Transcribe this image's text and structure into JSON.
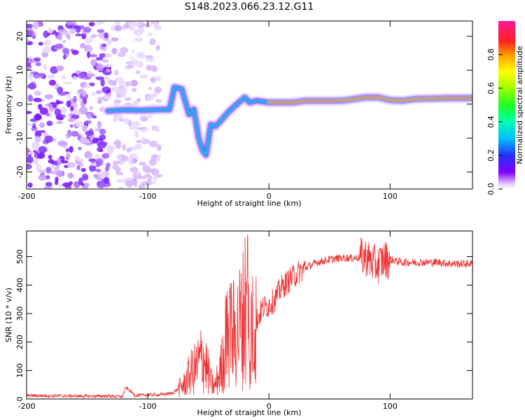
{
  "title": "S148.2023.066.23.12.G11",
  "chart_data": [
    {
      "type": "heatmap",
      "xlabel": "Height of straight line (km)",
      "ylabel": "Frequency (Hz)",
      "xlim": [
        -200,
        168
      ],
      "ylim": [
        -25,
        24.5
      ],
      "xticks": [
        -200,
        -100,
        0,
        100
      ],
      "yticks": [
        -20,
        -10,
        0,
        10,
        20
      ],
      "colorbar": {
        "label": "Normalized spectral amplitude",
        "ticks": [
          "0.0",
          "0.2",
          "0.4",
          "0.6",
          "0.8"
        ],
        "tick_values": [
          0,
          0.2,
          0.4,
          0.6,
          0.8
        ],
        "range": [
          0,
          1
        ],
        "colormap": "rainbow-to-magenta"
      },
      "ridge": [
        [
          -133,
          -2.0
        ],
        [
          -120,
          -1.7
        ],
        [
          -105,
          -1.8
        ],
        [
          -92,
          -1.6
        ],
        [
          -82,
          -1.6
        ],
        [
          -78,
          5.0
        ],
        [
          -72,
          4.5
        ],
        [
          -66,
          -3.0
        ],
        [
          -62,
          -1.5
        ],
        [
          -58,
          -10.0
        ],
        [
          -55,
          -13.5
        ],
        [
          -52,
          -15.0
        ],
        [
          -48,
          -6.0
        ],
        [
          -44,
          -6.5
        ],
        [
          -40,
          -5.0
        ],
        [
          -34,
          -2.5
        ],
        [
          -28,
          -0.5
        ],
        [
          -20,
          2.0
        ],
        [
          -16,
          0.5
        ],
        [
          -10,
          1.0
        ],
        [
          0,
          0.5
        ],
        [
          10,
          0.5
        ],
        [
          20,
          0.5
        ],
        [
          30,
          1.0
        ],
        [
          40,
          1.0
        ],
        [
          50,
          1.0
        ],
        [
          60,
          1.0
        ],
        [
          70,
          1.5
        ],
        [
          80,
          2.0
        ],
        [
          90,
          2.0
        ],
        [
          100,
          1.2
        ],
        [
          110,
          1.0
        ],
        [
          120,
          1.5
        ],
        [
          130,
          1.6
        ],
        [
          150,
          1.8
        ],
        [
          168,
          1.8
        ]
      ]
    },
    {
      "type": "line",
      "xlabel": "Height of straight line (km)",
      "ylabel": "SNR (10 * v/v)",
      "xlim": [
        -200,
        168
      ],
      "ylim": [
        0,
        590
      ],
      "xticks": [
        -200,
        -100,
        0,
        100
      ],
      "yticks": [
        0,
        100,
        200,
        300,
        400,
        500
      ],
      "color": "#ee3333",
      "series": [
        {
          "x": [
            -200,
            -150,
            -130,
            -121,
            -118,
            -110,
            -100,
            -90,
            -80,
            -70,
            -65,
            -60,
            -55,
            -52,
            -48,
            -45,
            -40,
            -35,
            -32,
            -30,
            -25,
            -20,
            -15,
            -12,
            -10,
            -5,
            0,
            5,
            10,
            20,
            30,
            40,
            50,
            60,
            70,
            80,
            85,
            90,
            95,
            100,
            110,
            120,
            130,
            140,
            150,
            168
          ],
          "y": [
            12,
            10,
            10,
            8,
            40,
            12,
            15,
            15,
            20,
            50,
            90,
            110,
            150,
            120,
            60,
            40,
            100,
            200,
            250,
            220,
            250,
            300,
            250,
            300,
            280,
            320,
            330,
            350,
            390,
            430,
            460,
            480,
            490,
            495,
            495,
            500,
            480,
            470,
            490,
            490,
            480,
            480,
            480,
            480,
            475,
            475
          ]
        }
      ]
    }
  ]
}
